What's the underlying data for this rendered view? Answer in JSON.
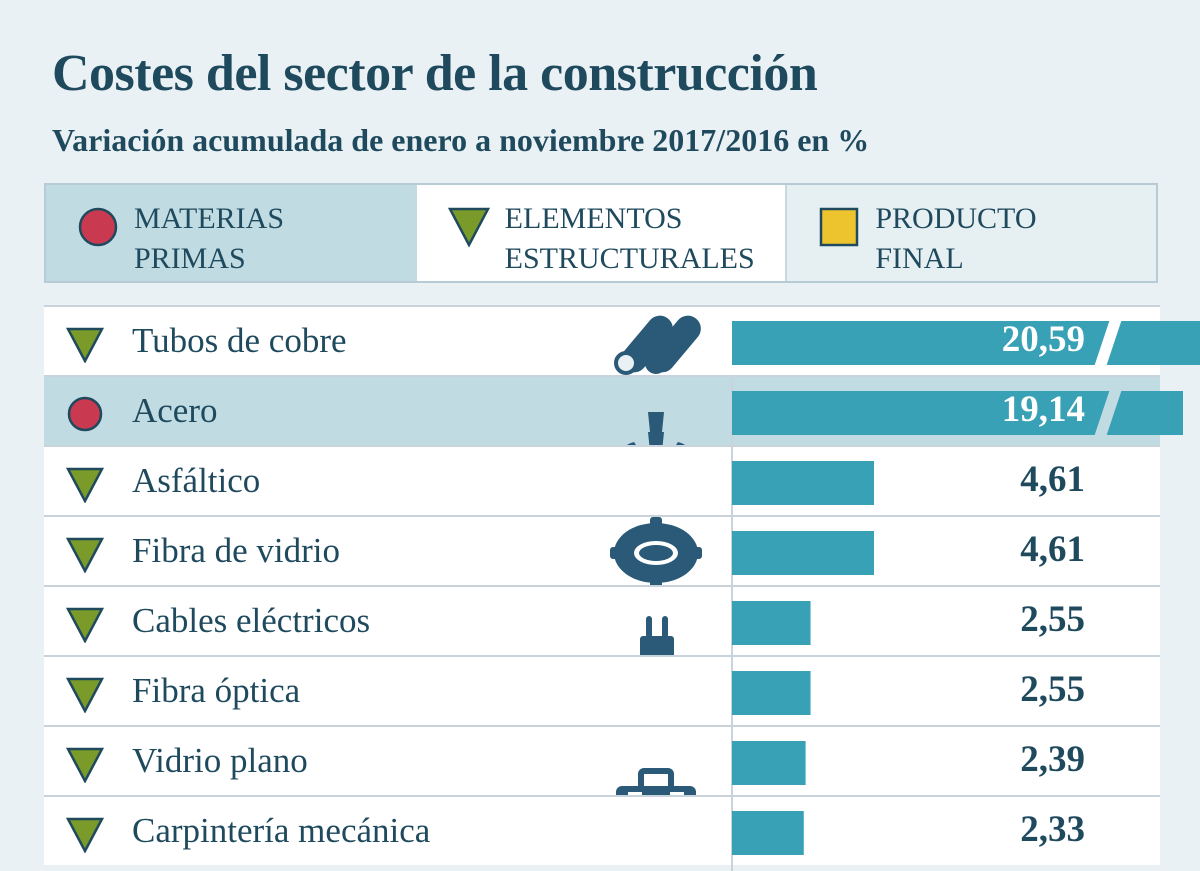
{
  "title": "Costes del sector de la construcción",
  "subtitle": "Variación acumulada de enero a noviembre 2017/2016 en %",
  "legend": [
    {
      "key": "materias",
      "label": "MATERIAS\nPRIMAS",
      "shape": "circle",
      "color": "#c9394f"
    },
    {
      "key": "elementos",
      "label": "ELEMENTOS\nESTRUCTURALES",
      "shape": "triangle-down",
      "color": "#7a9a2a"
    },
    {
      "key": "producto",
      "label": "PRODUCTO\nFINAL",
      "shape": "square",
      "color": "#eec42e"
    }
  ],
  "colors": {
    "bar": "#38a1b5",
    "text": "#1f4a5e",
    "highlight_row": "#c0dbe2",
    "icon": "#2a5a78"
  },
  "chart_data": {
    "type": "bar",
    "orientation": "horizontal",
    "title": "Costes del sector de la construcción",
    "subtitle": "Variación acumulada de enero a noviembre 2017/2016 en %",
    "categories": [
      "Tubos de cobre",
      "Acero",
      "Asfáltico",
      "Fibra de vidrio",
      "Cables eléctricos",
      "Fibra óptica",
      "Vidrio plano",
      "Carpintería mecánica"
    ],
    "values": [
      20.59,
      19.14,
      4.61,
      4.61,
      2.55,
      2.55,
      2.39,
      2.33
    ],
    "labels": [
      "20,59",
      "19,14",
      "4,61",
      "4,61",
      "2,55",
      "2,55",
      "2,39",
      "2,33"
    ],
    "groups": [
      "elementos",
      "materias",
      "elementos",
      "elementos",
      "elementos",
      "elementos",
      "elementos",
      "elementos"
    ],
    "icons": [
      "pipes-icon",
      "drill-icon",
      "drill-icon",
      "gear-icon",
      "plug-icon",
      "plug-icon",
      "toolbox-icon",
      "toolbox-icon"
    ],
    "broken_axis_bars": [
      "Tubos de cobre",
      "Acero"
    ],
    "highlighted": "Acero",
    "grid": false
  }
}
